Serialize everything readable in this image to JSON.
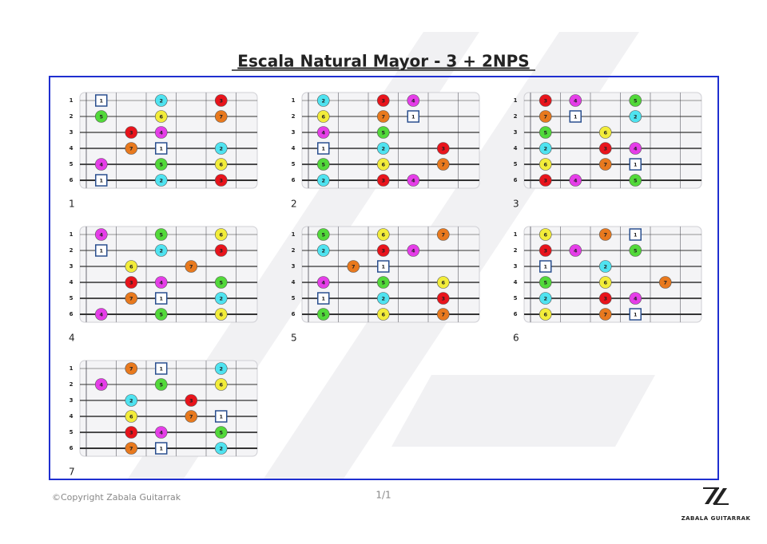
{
  "header": {
    "title": "Escala Natural Mayor - 3 + 2NPS"
  },
  "degree_colors": {
    "1": "#ffffff",
    "2": "#4fe3f0",
    "3": "#e8141c",
    "4": "#e53de8",
    "5": "#52d93a",
    "6": "#f2ec3a",
    "7": "#e8791e"
  },
  "diagrams": [
    {
      "label": "1",
      "rows": [
        {
          "string": "1",
          "cells": [
            "1",
            null,
            "2",
            null,
            "3",
            null
          ]
        },
        {
          "string": "2",
          "cells": [
            "5",
            null,
            "6",
            null,
            "7",
            null
          ]
        },
        {
          "string": "3",
          "cells": [
            null,
            "3",
            "4",
            null,
            null,
            null
          ]
        },
        {
          "string": "4",
          "cells": [
            null,
            "7",
            "1",
            null,
            "2",
            null
          ]
        },
        {
          "string": "5",
          "cells": [
            "4",
            null,
            "5",
            null,
            "6",
            null
          ]
        },
        {
          "string": "6",
          "cells": [
            "1",
            null,
            "2",
            null,
            "3",
            null
          ]
        }
      ]
    },
    {
      "label": "2",
      "rows": [
        {
          "string": "1",
          "cells": [
            "2",
            null,
            "3",
            "4",
            null,
            null
          ]
        },
        {
          "string": "2",
          "cells": [
            "6",
            null,
            "7",
            "1",
            null,
            null
          ]
        },
        {
          "string": "3",
          "cells": [
            "4",
            null,
            "5",
            null,
            null,
            null
          ]
        },
        {
          "string": "4",
          "cells": [
            "1",
            null,
            "2",
            null,
            "3",
            null
          ]
        },
        {
          "string": "5",
          "cells": [
            "5",
            null,
            "6",
            null,
            "7",
            null
          ]
        },
        {
          "string": "6",
          "cells": [
            "2",
            null,
            "3",
            "4",
            null,
            null
          ]
        }
      ]
    },
    {
      "label": "3",
      "rows": [
        {
          "string": "1",
          "cells": [
            "3",
            "4",
            null,
            "5",
            null,
            null
          ]
        },
        {
          "string": "2",
          "cells": [
            "7",
            "1",
            null,
            "2",
            null,
            null
          ]
        },
        {
          "string": "3",
          "cells": [
            "5",
            null,
            "6",
            null,
            null,
            null
          ]
        },
        {
          "string": "4",
          "cells": [
            "2",
            null,
            "3",
            "4",
            null,
            null
          ]
        },
        {
          "string": "5",
          "cells": [
            "6",
            null,
            "7",
            "1",
            null,
            null
          ]
        },
        {
          "string": "6",
          "cells": [
            "3",
            "4",
            null,
            "5",
            null,
            null
          ]
        }
      ]
    },
    {
      "label": "4",
      "rows": [
        {
          "string": "1",
          "cells": [
            "4",
            null,
            "5",
            null,
            "6",
            null
          ]
        },
        {
          "string": "2",
          "cells": [
            "1",
            null,
            "2",
            null,
            "3",
            null
          ]
        },
        {
          "string": "3",
          "cells": [
            null,
            "6",
            null,
            "7",
            null,
            null
          ]
        },
        {
          "string": "4",
          "cells": [
            null,
            "3",
            "4",
            null,
            "5",
            null
          ]
        },
        {
          "string": "5",
          "cells": [
            null,
            "7",
            "1",
            null,
            "2",
            null
          ]
        },
        {
          "string": "6",
          "cells": [
            "4",
            null,
            "5",
            null,
            "6",
            null
          ]
        }
      ]
    },
    {
      "label": "5",
      "rows": [
        {
          "string": "1",
          "cells": [
            "5",
            null,
            "6",
            null,
            "7",
            null
          ]
        },
        {
          "string": "2",
          "cells": [
            "2",
            null,
            "3",
            "4",
            null,
            null
          ]
        },
        {
          "string": "3",
          "cells": [
            null,
            "7",
            "1",
            null,
            null,
            null
          ]
        },
        {
          "string": "4",
          "cells": [
            "4",
            null,
            "5",
            null,
            "6",
            null
          ]
        },
        {
          "string": "5",
          "cells": [
            "1",
            null,
            "2",
            null,
            "3",
            null
          ]
        },
        {
          "string": "6",
          "cells": [
            "5",
            null,
            "6",
            null,
            "7",
            null
          ]
        }
      ]
    },
    {
      "label": "6",
      "rows": [
        {
          "string": "1",
          "cells": [
            "6",
            null,
            "7",
            "1",
            null,
            null
          ]
        },
        {
          "string": "2",
          "cells": [
            "3",
            "4",
            null,
            "5",
            null,
            null
          ]
        },
        {
          "string": "3",
          "cells": [
            "1",
            null,
            "2",
            null,
            null,
            null
          ]
        },
        {
          "string": "4",
          "cells": [
            "5",
            null,
            "6",
            null,
            "7",
            null
          ]
        },
        {
          "string": "5",
          "cells": [
            "2",
            null,
            "3",
            "4",
            null,
            null
          ]
        },
        {
          "string": "6",
          "cells": [
            "6",
            null,
            "7",
            "1",
            null,
            null
          ]
        }
      ]
    },
    {
      "label": "7",
      "rows": [
        {
          "string": "1",
          "cells": [
            null,
            "7",
            "1",
            null,
            "2",
            null
          ]
        },
        {
          "string": "2",
          "cells": [
            "4",
            null,
            "5",
            null,
            "6",
            null
          ]
        },
        {
          "string": "3",
          "cells": [
            null,
            "2",
            null,
            "3",
            null,
            null
          ]
        },
        {
          "string": "4",
          "cells": [
            null,
            "6",
            null,
            "7",
            "1",
            null
          ]
        },
        {
          "string": "5",
          "cells": [
            null,
            "3",
            "4",
            null,
            "5",
            null
          ]
        },
        {
          "string": "6",
          "cells": [
            null,
            "7",
            "1",
            null,
            "2",
            null
          ]
        }
      ]
    }
  ],
  "footer": {
    "copyright": "©Copyright Zabala Guitarrak",
    "page": "1/1",
    "brand": "ZABALA GUITARRAK"
  }
}
